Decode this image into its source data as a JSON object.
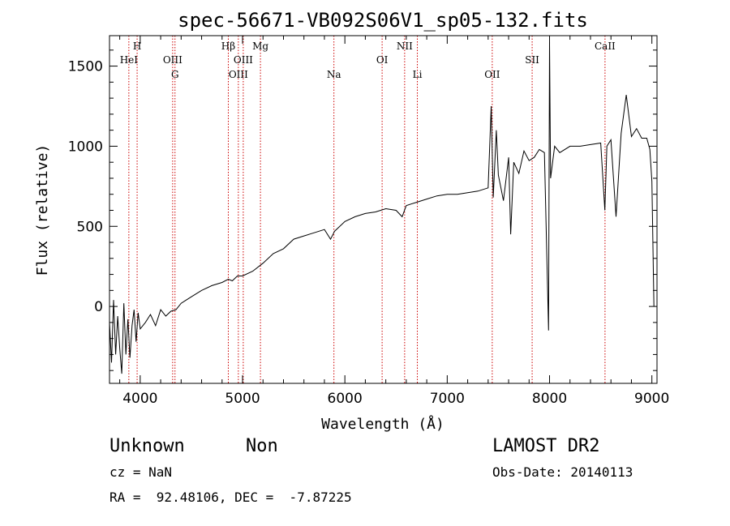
{
  "chart_data": {
    "type": "line",
    "title": "spec-56671-VB092S06V1_sp05-132.fits",
    "xlabel": "Wavelength (Å)",
    "ylabel": "Flux (relative)",
    "xlim": [
      3700,
      9050
    ],
    "ylim": [
      -480,
      1690
    ],
    "x_ticks": [
      4000,
      5000,
      6000,
      7000,
      8000,
      9000
    ],
    "y_ticks": [
      0,
      500,
      1000,
      1500
    ],
    "series": [
      {
        "x": [
          3700,
          3720,
          3740,
          3760,
          3780,
          3800,
          3820,
          3840,
          3860,
          3880,
          3900,
          3920,
          3940,
          3960,
          3980,
          4000,
          4050,
          4100,
          4150,
          4200,
          4250,
          4300,
          4350,
          4400,
          4450,
          4500,
          4600,
          4700,
          4800,
          4860,
          4900,
          4950,
          5000,
          5100,
          5200,
          5300,
          5400,
          5500,
          5600,
          5700,
          5800,
          5860,
          5900,
          5950,
          6000,
          6100,
          6200,
          6300,
          6400,
          6500,
          6560,
          6600,
          6700,
          6800,
          6900,
          7000,
          7100,
          7200,
          7300,
          7400,
          7430,
          7450,
          7480,
          7500,
          7550,
          7600,
          7620,
          7650,
          7700,
          7750,
          7800,
          7850,
          7900,
          7950,
          7990,
          8000,
          8010,
          8050,
          8100,
          8200,
          8300,
          8400,
          8500,
          8540,
          8560,
          8600,
          8650,
          8700,
          8750,
          8800,
          8850,
          8900,
          8950,
          8980,
          9000,
          9020
        ],
        "y": [
          -100,
          -350,
          40,
          -300,
          -60,
          -260,
          -420,
          20,
          -300,
          -80,
          -320,
          -120,
          -20,
          -220,
          -40,
          -140,
          -100,
          -50,
          -120,
          -20,
          -60,
          -30,
          -20,
          20,
          40,
          60,
          100,
          130,
          150,
          170,
          160,
          190,
          190,
          220,
          270,
          330,
          360,
          420,
          440,
          460,
          480,
          420,
          470,
          500,
          530,
          560,
          580,
          590,
          610,
          600,
          560,
          630,
          650,
          670,
          690,
          700,
          700,
          710,
          720,
          740,
          1250,
          680,
          1100,
          820,
          660,
          930,
          450,
          900,
          830,
          970,
          910,
          930,
          980,
          960,
          -150,
          1650,
          800,
          1000,
          960,
          1000,
          1000,
          1010,
          1020,
          600,
          1000,
          1040,
          560,
          1080,
          1320,
          1060,
          1110,
          1050,
          1050,
          980,
          780,
          0
        ]
      }
    ],
    "spectral_lines": [
      {
        "label": "HeI",
        "x": 3889,
        "row": 1
      },
      {
        "label": "H",
        "x": 3970,
        "row": 0
      },
      {
        "label": "OIII",
        "x": 4317,
        "row": 1
      },
      {
        "label": "G",
        "x": 4340,
        "row": 2
      },
      {
        "label": "Hβ",
        "x": 4861,
        "row": 0
      },
      {
        "label": "OIII",
        "x": 4959,
        "row": 2
      },
      {
        "label": "OIII",
        "x": 5007,
        "row": 1
      },
      {
        "label": "Mg",
        "x": 5175,
        "row": 0
      },
      {
        "label": "Na",
        "x": 5893,
        "row": 2
      },
      {
        "label": "OI",
        "x": 6364,
        "row": 1
      },
      {
        "label": "NII",
        "x": 6584,
        "row": 0
      },
      {
        "label": "Li",
        "x": 6708,
        "row": 2
      },
      {
        "label": "OII",
        "x": 7440,
        "row": 2
      },
      {
        "label": "SII",
        "x": 7830,
        "row": 1
      },
      {
        "label": "CaII",
        "x": 8542,
        "row": 0
      }
    ],
    "grid": false,
    "colors": {
      "line": "#000000",
      "marker_lines": "#cc0000"
    }
  },
  "info": {
    "object_class": "Unknown",
    "subclass": "Non",
    "survey": "LAMOST DR2",
    "redshift": "cz = NaN",
    "obs_date": "Obs-Date: 20140113",
    "coordinates": "RA =  92.48106, DEC =  -7.87225"
  }
}
